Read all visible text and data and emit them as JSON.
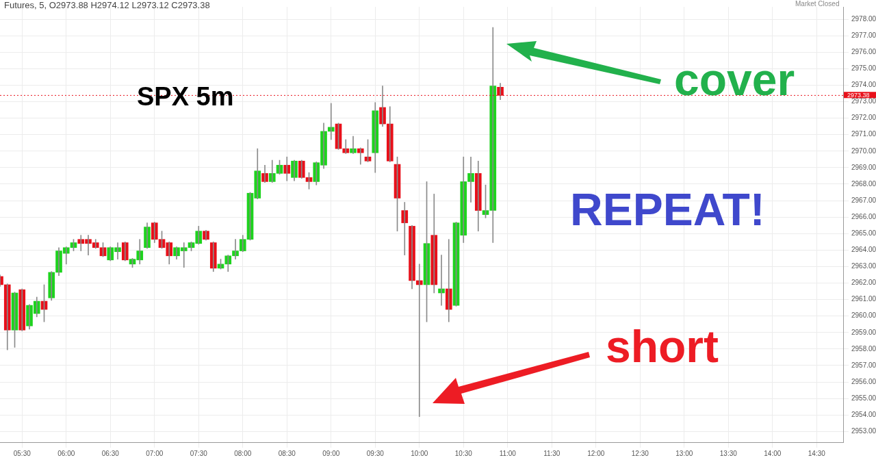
{
  "chart_data": {
    "type": "candlestick",
    "title": "SPX 5m",
    "subtitle": "Futures, 5, O2973.88 H2974.12 L2973.12 C2973.38",
    "annotations": [
      "Market Closed",
      "cover",
      "REPEAT!",
      "short"
    ],
    "x": [
      5.25,
      5.3333,
      5.4167,
      5.5,
      5.5833,
      5.6667,
      5.75,
      5.8333,
      5.9167,
      6,
      6.0833,
      6.1667,
      6.25,
      6.3333,
      6.4167,
      6.5,
      6.5833,
      6.6667,
      6.75,
      6.8333,
      6.9167,
      7,
      7.0833,
      7.1667,
      7.25,
      7.3333,
      7.4167,
      7.5,
      7.5833,
      7.6667,
      7.75,
      7.8333,
      7.9167,
      8,
      8.0833,
      8.1667,
      8.25,
      8.3333,
      8.4167,
      8.5,
      8.5833,
      8.6667,
      8.75,
      8.8333,
      8.9167,
      9,
      9.0833,
      9.1667,
      9.25,
      9.3333,
      9.4167,
      9.5,
      9.5833,
      9.6667,
      9.75,
      9.8333,
      9.9167,
      10,
      10.0833,
      10.1667,
      10.25,
      10.3333,
      10.4167,
      10.5,
      10.5833,
      10.6667,
      10.75,
      10.8333,
      10.9167
    ],
    "ohlc": [
      [
        2962.4,
        2962.5,
        2961.8,
        2961.9
      ],
      [
        2961.9,
        2961.95,
        2957.95,
        2959.15
      ],
      [
        2959.15,
        2961.45,
        2958.1,
        2961.4
      ],
      [
        2961.6,
        2961.65,
        2959.1,
        2959.15
      ],
      [
        2959.4,
        2960.7,
        2959.2,
        2960.65
      ],
      [
        2960.15,
        2961.15,
        2959.95,
        2960.9
      ],
      [
        2960.9,
        2961.9,
        2959.65,
        2960.4
      ],
      [
        2961.1,
        2962.7,
        2960.95,
        2962.65
      ],
      [
        2962.65,
        2964.15,
        2962.45,
        2963.95
      ],
      [
        2963.8,
        2964.2,
        2963.15,
        2964.15
      ],
      [
        2964.15,
        2964.65,
        2963.95,
        2964.45
      ],
      [
        2964.65,
        2964.9,
        2963.95,
        2964.4
      ],
      [
        2964.65,
        2964.9,
        2963.7,
        2964.4
      ],
      [
        2964.45,
        2964.65,
        2964.1,
        2964.15
      ],
      [
        2964.15,
        2964.45,
        2963.6,
        2963.65
      ],
      [
        2963.4,
        2964.2,
        2963.35,
        2964.15
      ],
      [
        2963.9,
        2964.45,
        2963.45,
        2964.15
      ],
      [
        2964.45,
        2964.5,
        2963.35,
        2963.4
      ],
      [
        2963.15,
        2963.5,
        2962.95,
        2963.45
      ],
      [
        2963.4,
        2964.65,
        2963.15,
        2963.95
      ],
      [
        2964.15,
        2965.65,
        2964.1,
        2965.4
      ],
      [
        2965.65,
        2965.7,
        2964.45,
        2964.65
      ],
      [
        2964.65,
        2965.15,
        2964.1,
        2964.15
      ],
      [
        2964.45,
        2964.5,
        2963.15,
        2963.65
      ],
      [
        2963.65,
        2964.2,
        2963.45,
        2964.15
      ],
      [
        2963.95,
        2964.45,
        2962.95,
        2964.15
      ],
      [
        2964.15,
        2964.5,
        2963.95,
        2964.45
      ],
      [
        2964.4,
        2965.45,
        2964.35,
        2965.15
      ],
      [
        2965.15,
        2965.2,
        2964.6,
        2964.65
      ],
      [
        2964.45,
        2964.5,
        2962.7,
        2962.9
      ],
      [
        2962.9,
        2963.45,
        2962.85,
        2963.15
      ],
      [
        2963.15,
        2963.7,
        2962.7,
        2963.65
      ],
      [
        2963.65,
        2964.65,
        2963.45,
        2963.95
      ],
      [
        2963.95,
        2964.9,
        2963.9,
        2964.65
      ],
      [
        2964.65,
        2967.5,
        2964.6,
        2967.45
      ],
      [
        2967.15,
        2970.15,
        2967.1,
        2968.8
      ],
      [
        2968.65,
        2969.15,
        2968.1,
        2968.15
      ],
      [
        2968.15,
        2969.45,
        2968.1,
        2968.65
      ],
      [
        2968.65,
        2969.45,
        2968.6,
        2969.15
      ],
      [
        2969.15,
        2969.65,
        2968.2,
        2968.65
      ],
      [
        2968.4,
        2969.45,
        2968.2,
        2969.4
      ],
      [
        2969.4,
        2969.45,
        2968.35,
        2968.4
      ],
      [
        2968.4,
        2968.7,
        2967.7,
        2968.15
      ],
      [
        2968.15,
        2969.35,
        2967.95,
        2969.3
      ],
      [
        2969.15,
        2971.7,
        2968.95,
        2971.2
      ],
      [
        2971.2,
        2972.9,
        2970.7,
        2971.45
      ],
      [
        2971.65,
        2971.7,
        2970.1,
        2970.15
      ],
      [
        2970.15,
        2970.7,
        2969.85,
        2969.9
      ],
      [
        2969.9,
        2970.9,
        2969.85,
        2970.15
      ],
      [
        2970.15,
        2970.2,
        2969.2,
        2969.9
      ],
      [
        2969.65,
        2970.7,
        2969.35,
        2969.4
      ],
      [
        2969.9,
        2972.95,
        2968.7,
        2972.45
      ],
      [
        2972.65,
        2973.95,
        2971.5,
        2971.65
      ],
      [
        2971.65,
        2972.7,
        2969.35,
        2969.4
      ],
      [
        2969.2,
        2969.65,
        2965.15,
        2967.15
      ],
      [
        2966.4,
        2966.9,
        2963.7,
        2965.65
      ],
      [
        2965.45,
        2965.5,
        2961.65,
        2962.15
      ],
      [
        2962.15,
        2963.15,
        2953.9,
        2961.9
      ],
      [
        2961.9,
        2968.15,
        2959.65,
        2964.4
      ],
      [
        2964.9,
        2967.4,
        2961.4,
        2961.9
      ],
      [
        2961.4,
        2963.7,
        2960.65,
        2961.65
      ],
      [
        2961.65,
        2964.65,
        2959.65,
        2960.4
      ],
      [
        2960.65,
        2965.7,
        2960.6,
        2965.65
      ],
      [
        2964.9,
        2969.65,
        2964.45,
        2968.15
      ],
      [
        2968.15,
        2969.65,
        2966.9,
        2968.65
      ],
      [
        2968.65,
        2969.4,
        2965.15,
        2966.4
      ],
      [
        2966.15,
        2967.95,
        2965.95,
        2966.4
      ],
      [
        2966.4,
        2977.5,
        2964.45,
        2973.95
      ],
      [
        2973.88,
        2974.12,
        2973.12,
        2973.38
      ]
    ],
    "colors": [
      "#e8101a",
      "#e8101a",
      "#1ed31e",
      "#e8101a",
      "#1ed31e",
      "#1ed31e",
      "#e8101a",
      "#1ed31e",
      "#1ed31e",
      "#1ed31e",
      "#1ed31e",
      "#e8101a",
      "#e8101a",
      "#e8101a",
      "#e8101a",
      "#1ed31e",
      "#1ed31e",
      "#e8101a",
      "#1ed31e",
      "#1ed31e",
      "#1ed31e",
      "#e8101a",
      "#e8101a",
      "#e8101a",
      "#1ed31e",
      "#1ed31e",
      "#1ed31e",
      "#1ed31e",
      "#e8101a",
      "#e8101a",
      "#1ed31e",
      "#1ed31e",
      "#1ed31e",
      "#1ed31e",
      "#1ed31e",
      "#1ed31e",
      "#e8101a",
      "#1ed31e",
      "#1ed31e",
      "#e8101a",
      "#1ed31e",
      "#e8101a",
      "#e8101a",
      "#1ed31e",
      "#1ed31e",
      "#1ed31e",
      "#e8101a",
      "#e8101a",
      "#1ed31e",
      "#e8101a",
      "#e8101a",
      "#1ed31e",
      "#e8101a",
      "#e8101a",
      "#e8101a",
      "#e8101a",
      "#e8101a",
      "#e8101a",
      "#1ed31e",
      "#e8101a",
      "#1ed31e",
      "#e8101a",
      "#1ed31e",
      "#1ed31e",
      "#1ed31e",
      "#e8101a",
      "#1ed31e",
      "#1ed31e",
      "#e8101a"
    ],
    "xlim": [
      5.25,
      14.8
    ],
    "xticks": [
      {
        "value": 5.5,
        "label": "05:30"
      },
      {
        "value": 6,
        "label": "06:00"
      },
      {
        "value": 6.5,
        "label": "06:30"
      },
      {
        "value": 7,
        "label": "07:00"
      },
      {
        "value": 7.5,
        "label": "07:30"
      },
      {
        "value": 8,
        "label": "08:00"
      },
      {
        "value": 8.5,
        "label": "08:30"
      },
      {
        "value": 9,
        "label": "09:00"
      },
      {
        "value": 9.5,
        "label": "09:30"
      },
      {
        "value": 10,
        "label": "10:00"
      },
      {
        "value": 10.5,
        "label": "10:30"
      },
      {
        "value": 11,
        "label": "11:00"
      },
      {
        "value": 11.5,
        "label": "11:30"
      },
      {
        "value": 12,
        "label": "12:00"
      },
      {
        "value": 12.5,
        "label": "12:30"
      },
      {
        "value": 13,
        "label": "13:00"
      },
      {
        "value": 13.5,
        "label": "13:30"
      },
      {
        "value": 14,
        "label": "14:00"
      },
      {
        "value": 14.5,
        "label": "14:30"
      }
    ],
    "ylim": [
      2952.35,
      2978.75
    ],
    "yticks": [
      {
        "value": 2953,
        "label": "2953.00"
      },
      {
        "value": 2954,
        "label": "2954.00"
      },
      {
        "value": 2955,
        "label": "2955.00"
      },
      {
        "value": 2956,
        "label": "2956.00"
      },
      {
        "value": 2957,
        "label": "2957.00"
      },
      {
        "value": 2958,
        "label": "2958.00"
      },
      {
        "value": 2959,
        "label": "2959.00"
      },
      {
        "value": 2960,
        "label": "2960.00"
      },
      {
        "value": 2961,
        "label": "2961.00"
      },
      {
        "value": 2962,
        "label": "2962.00"
      },
      {
        "value": 2963,
        "label": "2963.00"
      },
      {
        "value": 2964,
        "label": "2964.00"
      },
      {
        "value": 2965,
        "label": "2965.00"
      },
      {
        "value": 2966,
        "label": "2966.00"
      },
      {
        "value": 2967,
        "label": "2967.00"
      },
      {
        "value": 2968,
        "label": "2968.00"
      },
      {
        "value": 2969,
        "label": "2969.00"
      },
      {
        "value": 2970,
        "label": "2970.00"
      },
      {
        "value": 2971,
        "label": "2971.00"
      },
      {
        "value": 2972,
        "label": "2972.00"
      },
      {
        "value": 2973,
        "label": "2973.00"
      },
      {
        "value": 2974,
        "label": "2974.00"
      },
      {
        "value": 2975,
        "label": "2975.00"
      },
      {
        "value": 2976,
        "label": "2976.00"
      },
      {
        "value": 2977,
        "label": "2977.00"
      },
      {
        "value": 2978,
        "label": "2978.00"
      }
    ],
    "ref_lines": [
      {
        "axis": "y",
        "value": 2973.38,
        "label": "2973.38",
        "color": "#e8101a"
      }
    ],
    "grid": true,
    "legend": false
  }
}
